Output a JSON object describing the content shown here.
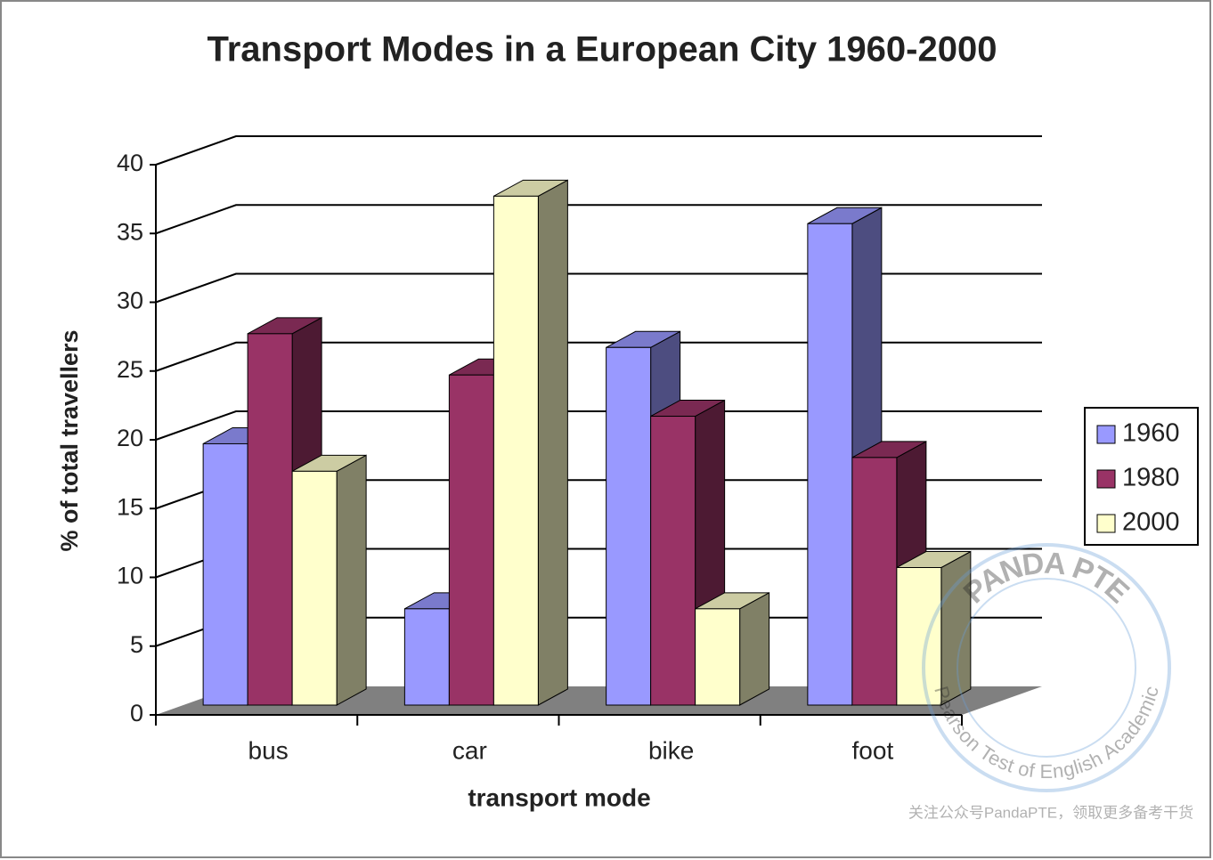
{
  "chart_data": {
    "type": "bar3d",
    "title": "Transport Modes in a European City 1960-2000",
    "x_label": "transport mode",
    "y_label": "% of total travellers",
    "categories": [
      "bus",
      "car",
      "bike",
      "foot"
    ],
    "series": [
      {
        "name": "1960",
        "color": "#9999ff",
        "values": [
          19,
          7,
          26,
          35
        ]
      },
      {
        "name": "1980",
        "color": "#993366",
        "values": [
          27,
          24,
          21,
          18
        ]
      },
      {
        "name": "2000",
        "color": "#ffffcc",
        "values": [
          17,
          37,
          7,
          10
        ]
      }
    ],
    "ylim": [
      0,
      40
    ],
    "yticks": [
      0,
      5,
      10,
      15,
      20,
      25,
      30,
      35,
      40
    ],
    "grid": true,
    "legend": "right"
  },
  "watermark": {
    "logo_top": "PANDA PTE",
    "logo_bottom": "Pearson Test of English Academic",
    "footer": "关注公众号PandaPTE，领取更多备考干货"
  }
}
